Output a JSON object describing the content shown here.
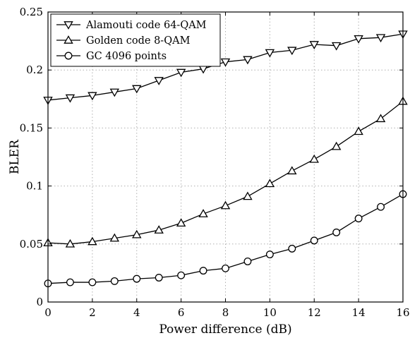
{
  "chart_data": {
    "type": "line",
    "xlabel": "Power difference (dB)",
    "ylabel": "BLER",
    "xlim": [
      0,
      16
    ],
    "ylim": [
      0,
      0.25
    ],
    "xticks": [
      0,
      2,
      4,
      6,
      8,
      10,
      12,
      14,
      16
    ],
    "yticks": [
      0,
      0.05,
      0.1,
      0.15,
      0.2,
      0.25
    ],
    "xtick_labels": [
      "0",
      "2",
      "4",
      "6",
      "8",
      "10",
      "12",
      "14",
      "16"
    ],
    "ytick_labels": [
      "0",
      "0.05",
      "0.1",
      "0.15",
      "0.2",
      "0.25"
    ],
    "grid": true,
    "legend_position": "top-left",
    "x": [
      0,
      1,
      2,
      3,
      4,
      5,
      6,
      7,
      8,
      9,
      10,
      11,
      12,
      13,
      14,
      15,
      16
    ],
    "series": [
      {
        "name": "Alamouti code 64-QAM",
        "marker": "triangle-down",
        "values": [
          0.174,
          0.176,
          0.178,
          0.181,
          0.184,
          0.191,
          0.198,
          0.201,
          0.207,
          0.209,
          0.215,
          0.217,
          0.222,
          0.221,
          0.227,
          0.228,
          0.231
        ]
      },
      {
        "name": "Golden code 8-QAM",
        "marker": "triangle-up",
        "values": [
          0.051,
          0.05,
          0.052,
          0.055,
          0.058,
          0.062,
          0.068,
          0.076,
          0.083,
          0.091,
          0.102,
          0.113,
          0.123,
          0.134,
          0.147,
          0.158,
          0.173
        ]
      },
      {
        "name": "GC 4096 points",
        "marker": "circle",
        "values": [
          0.016,
          0.017,
          0.017,
          0.018,
          0.02,
          0.021,
          0.023,
          0.027,
          0.029,
          0.035,
          0.041,
          0.046,
          0.053,
          0.06,
          0.072,
          0.082,
          0.093
        ]
      }
    ]
  }
}
